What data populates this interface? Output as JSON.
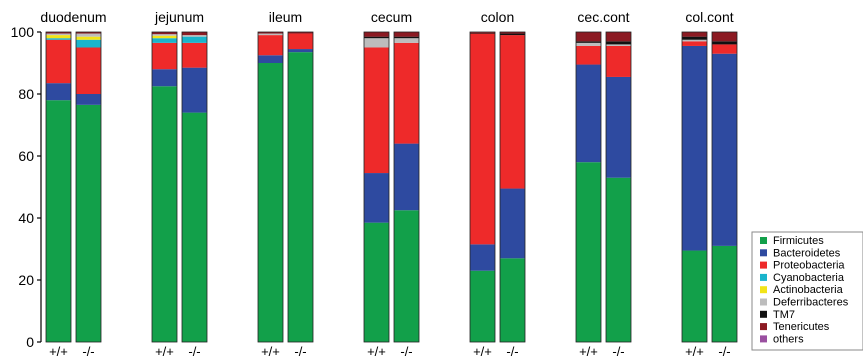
{
  "chart_data": {
    "type": "bar",
    "stacked": true,
    "ylim": [
      0,
      100
    ],
    "yticks": [
      0,
      20,
      40,
      60,
      80,
      100
    ],
    "grid": false,
    "legend_position": "bottom-right",
    "phyla": [
      "Firmicutes",
      "Bacteroidetes",
      "Proteobacteria",
      "Cyanobacteria",
      "Actinobacteria",
      "Deferribacteres",
      "TM7",
      "Tenericutes",
      "others"
    ],
    "colors": [
      "#12a04a",
      "#2e4aa0",
      "#ee2a2a",
      "#19b4cc",
      "#f2e418",
      "#bdbdbd",
      "#111111",
      "#8c1a22",
      "#9a4fa0"
    ],
    "panels": [
      {
        "title": "duodenum",
        "bars": [
          {
            "label": "+/+",
            "values": [
              78,
              5.5,
              14,
              0.5,
              1.0,
              0.5,
              0,
              0.5,
              0
            ]
          },
          {
            "label": "-/-",
            "values": [
              76.5,
              3.5,
              15,
              2.5,
              1.0,
              1.0,
              0,
              0.5,
              0
            ]
          }
        ]
      },
      {
        "title": "jejunum",
        "bars": [
          {
            "label": "+/+",
            "values": [
              82.5,
              5.5,
              8.5,
              1.5,
              0.8,
              0.5,
              0,
              0.7,
              0
            ]
          },
          {
            "label": "-/-",
            "values": [
              74,
              14.5,
              8,
              2.0,
              0,
              0.5,
              0,
              1.0,
              0
            ]
          }
        ]
      },
      {
        "title": "ileum",
        "bars": [
          {
            "label": "+/+",
            "values": [
              90,
              2.5,
              6.5,
              0,
              0,
              0.5,
              0,
              0.5,
              0
            ]
          },
          {
            "label": "-/-",
            "values": [
              93.5,
              1.0,
              5.0,
              0,
              0,
              0,
              0,
              0.5,
              0
            ]
          }
        ]
      },
      {
        "title": "cecum",
        "bars": [
          {
            "label": "+/+",
            "values": [
              38.5,
              16,
              40.5,
              0,
              0,
              3.0,
              0.5,
              1.5,
              0
            ]
          },
          {
            "label": "-/-",
            "values": [
              42.5,
              21.5,
              32.5,
              0,
              0,
              1.5,
              0.5,
              1.5,
              0
            ]
          }
        ]
      },
      {
        "title": "colon",
        "bars": [
          {
            "label": "+/+",
            "values": [
              23,
              8.5,
              68,
              0,
              0,
              0,
              0.2,
              0.3,
              0
            ]
          },
          {
            "label": "-/-",
            "values": [
              27,
              22.5,
              49.5,
              0,
              0,
              0,
              0.5,
              0.5,
              0
            ]
          }
        ]
      },
      {
        "title": "cec.cont",
        "bars": [
          {
            "label": "+/+",
            "values": [
              58,
              31.5,
              6.0,
              0,
              0,
              1.0,
              0.5,
              3.0,
              0
            ]
          },
          {
            "label": "-/-",
            "values": [
              53,
              32.5,
              10.0,
              0,
              0,
              0.5,
              1.0,
              3.0,
              0
            ]
          }
        ]
      },
      {
        "title": "col.cont",
        "bars": [
          {
            "label": "+/+",
            "values": [
              29.5,
              66.0,
              1.5,
              0,
              0,
              0.5,
              1.0,
              1.5,
              0
            ]
          },
          {
            "label": "-/-",
            "values": [
              31,
              62.0,
              3.0,
              0,
              0,
              0,
              1.0,
              3.0,
              0
            ]
          }
        ]
      }
    ]
  }
}
